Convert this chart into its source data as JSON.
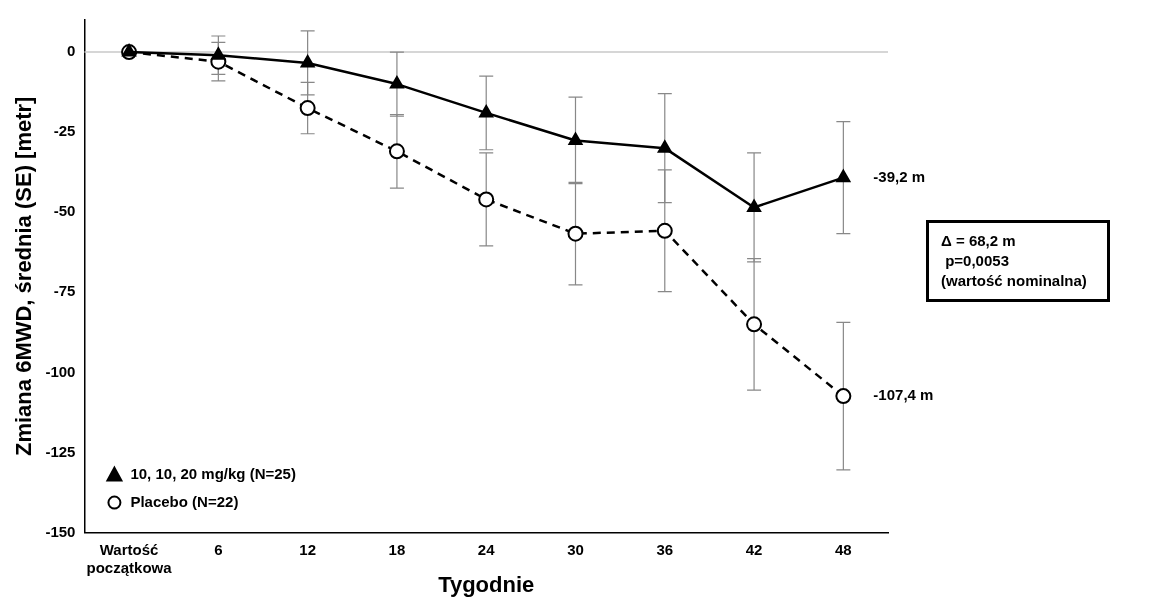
{
  "chart_data": {
    "type": "line",
    "xlabel": "Tygodnie",
    "ylabel": "Zmiana 6MWD, średnia (SE) [metr]",
    "categories": [
      "Wartość początkowa",
      "6",
      "12",
      "18",
      "24",
      "30",
      "36",
      "42",
      "48"
    ],
    "series": [
      {
        "name": "10, 10, 20 mg/kg (N=25)",
        "color": "#000000",
        "marker": "triangle",
        "line_style": "solid",
        "values": [
          0,
          -1,
          -3.4,
          -10,
          -19,
          -27.6,
          -30,
          -48.5,
          -39.2
        ],
        "errors": [
          null,
          6,
          10,
          10,
          11.5,
          13.5,
          17,
          17,
          17.5
        ]
      },
      {
        "name": "Placebo (N=22)",
        "color": "#000000",
        "marker": "circle",
        "line_style": "dashed",
        "values": [
          0,
          -3,
          -17.5,
          -31,
          -46,
          -56.7,
          -55.8,
          -85,
          -107.4
        ],
        "errors": [
          null,
          6,
          8,
          11.5,
          14.5,
          16,
          19,
          20.5,
          23
        ]
      }
    ],
    "ylim": [
      -150,
      10
    ],
    "yticks": [
      0,
      -25,
      -50,
      -75,
      -100,
      -125,
      -150
    ],
    "ref_lines": [
      {
        "axis": "y",
        "value": 0,
        "color": "#c8c8c8"
      }
    ],
    "annotations": [
      {
        "text": "-39,2 m",
        "x": "48",
        "y": -39.2
      },
      {
        "text": "-107,4 m",
        "x": "48",
        "y": -107.4
      },
      "Δ = 68,2 m\n p=0,0053\n(wartość nominalna)"
    ],
    "legend": "bottom left",
    "grid": false
  }
}
